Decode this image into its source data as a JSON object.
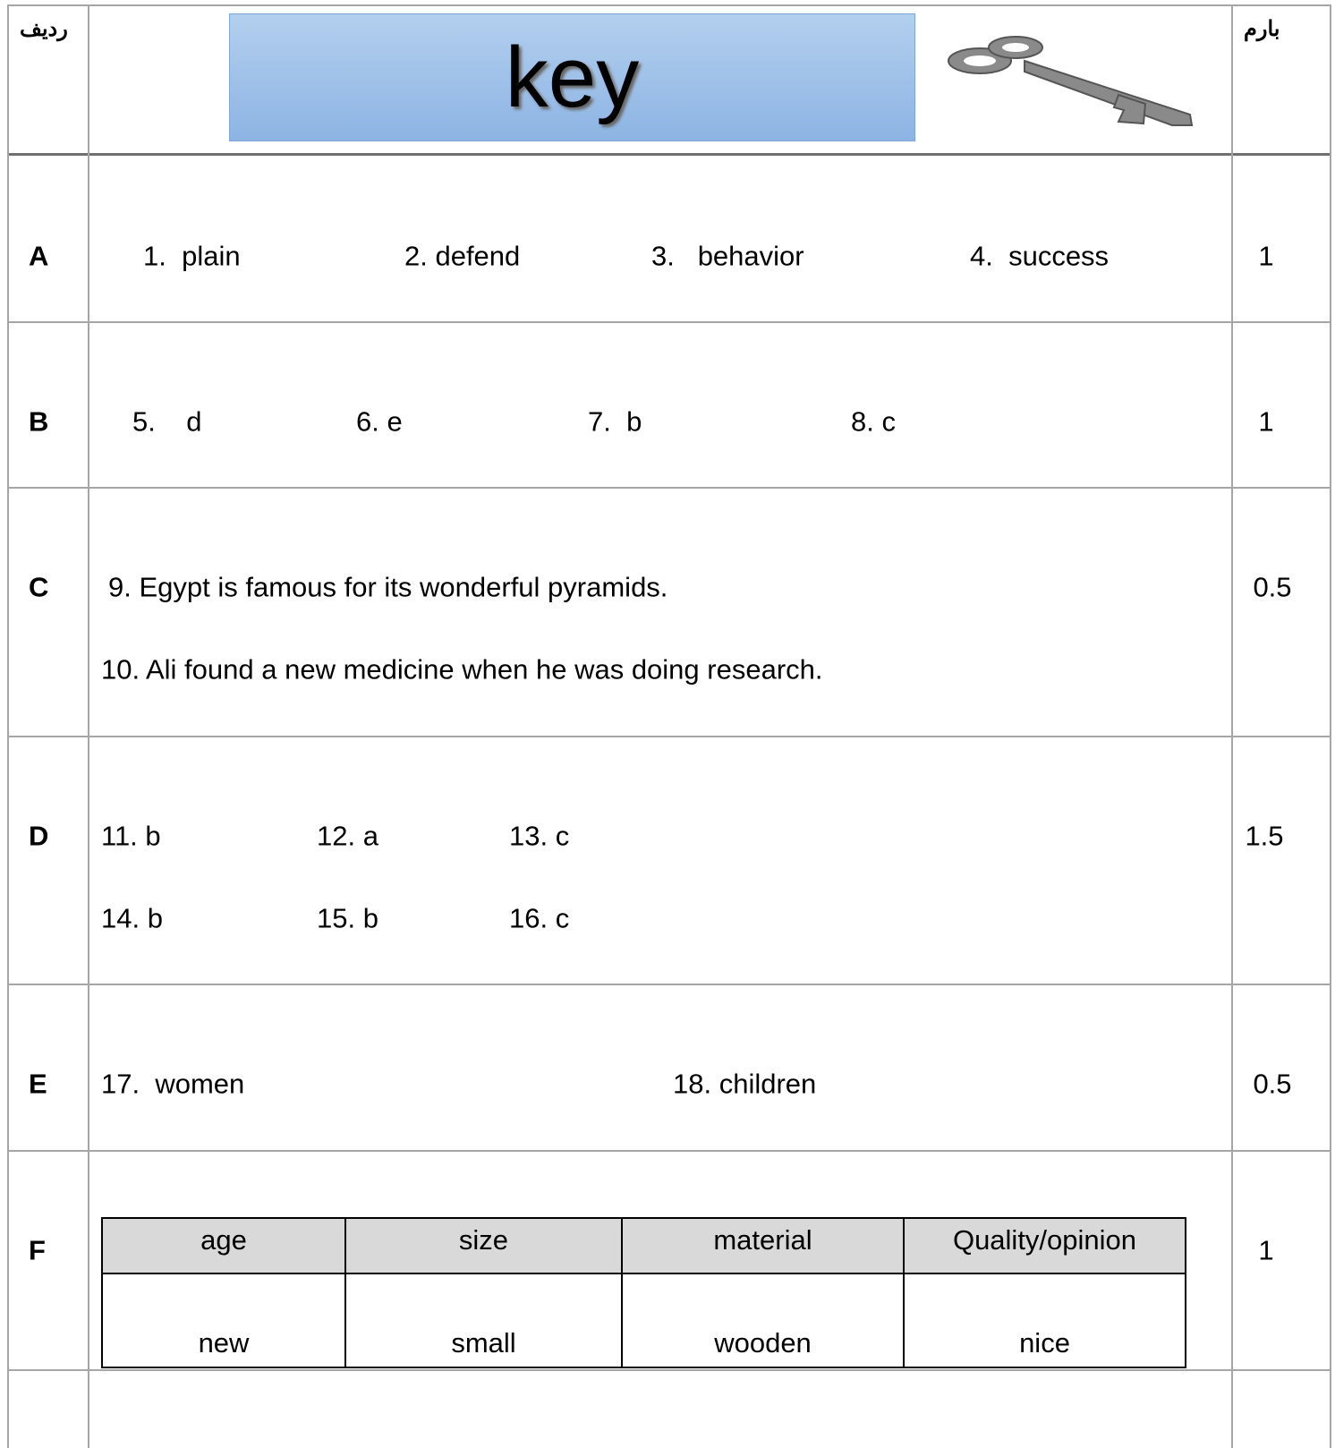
{
  "header": {
    "row_label": "ردیف",
    "title": "key",
    "score_label": "بارم"
  },
  "rows": [
    {
      "label": "A",
      "items": [
        "1.  plain",
        "2. defend",
        "3.   behavior",
        "4.  success"
      ],
      "score": 1
    },
    {
      "label": "B",
      "items": [
        "5.    d",
        "6. e",
        "7.  b",
        "8. c"
      ],
      "score": 1
    },
    {
      "label": "C",
      "items": [
        "9. Egypt is famous for its wonderful pyramids.",
        "10. Ali found a new medicine when he was doing research."
      ],
      "score": 0.5
    },
    {
      "label": "D",
      "items": [
        "11. b",
        "12. a",
        "13. c",
        "14. b",
        "15. b",
        "16. c"
      ],
      "score": 1.5
    },
    {
      "label": "E",
      "items": [
        "17.  women",
        "18. children"
      ],
      "score": 0.5
    },
    {
      "label": "F",
      "table": {
        "headers": [
          "age",
          "size",
          "material",
          "Quality/opinion"
        ],
        "values": [
          "new",
          "small",
          "wooden",
          "nice"
        ]
      },
      "score": 1
    }
  ]
}
